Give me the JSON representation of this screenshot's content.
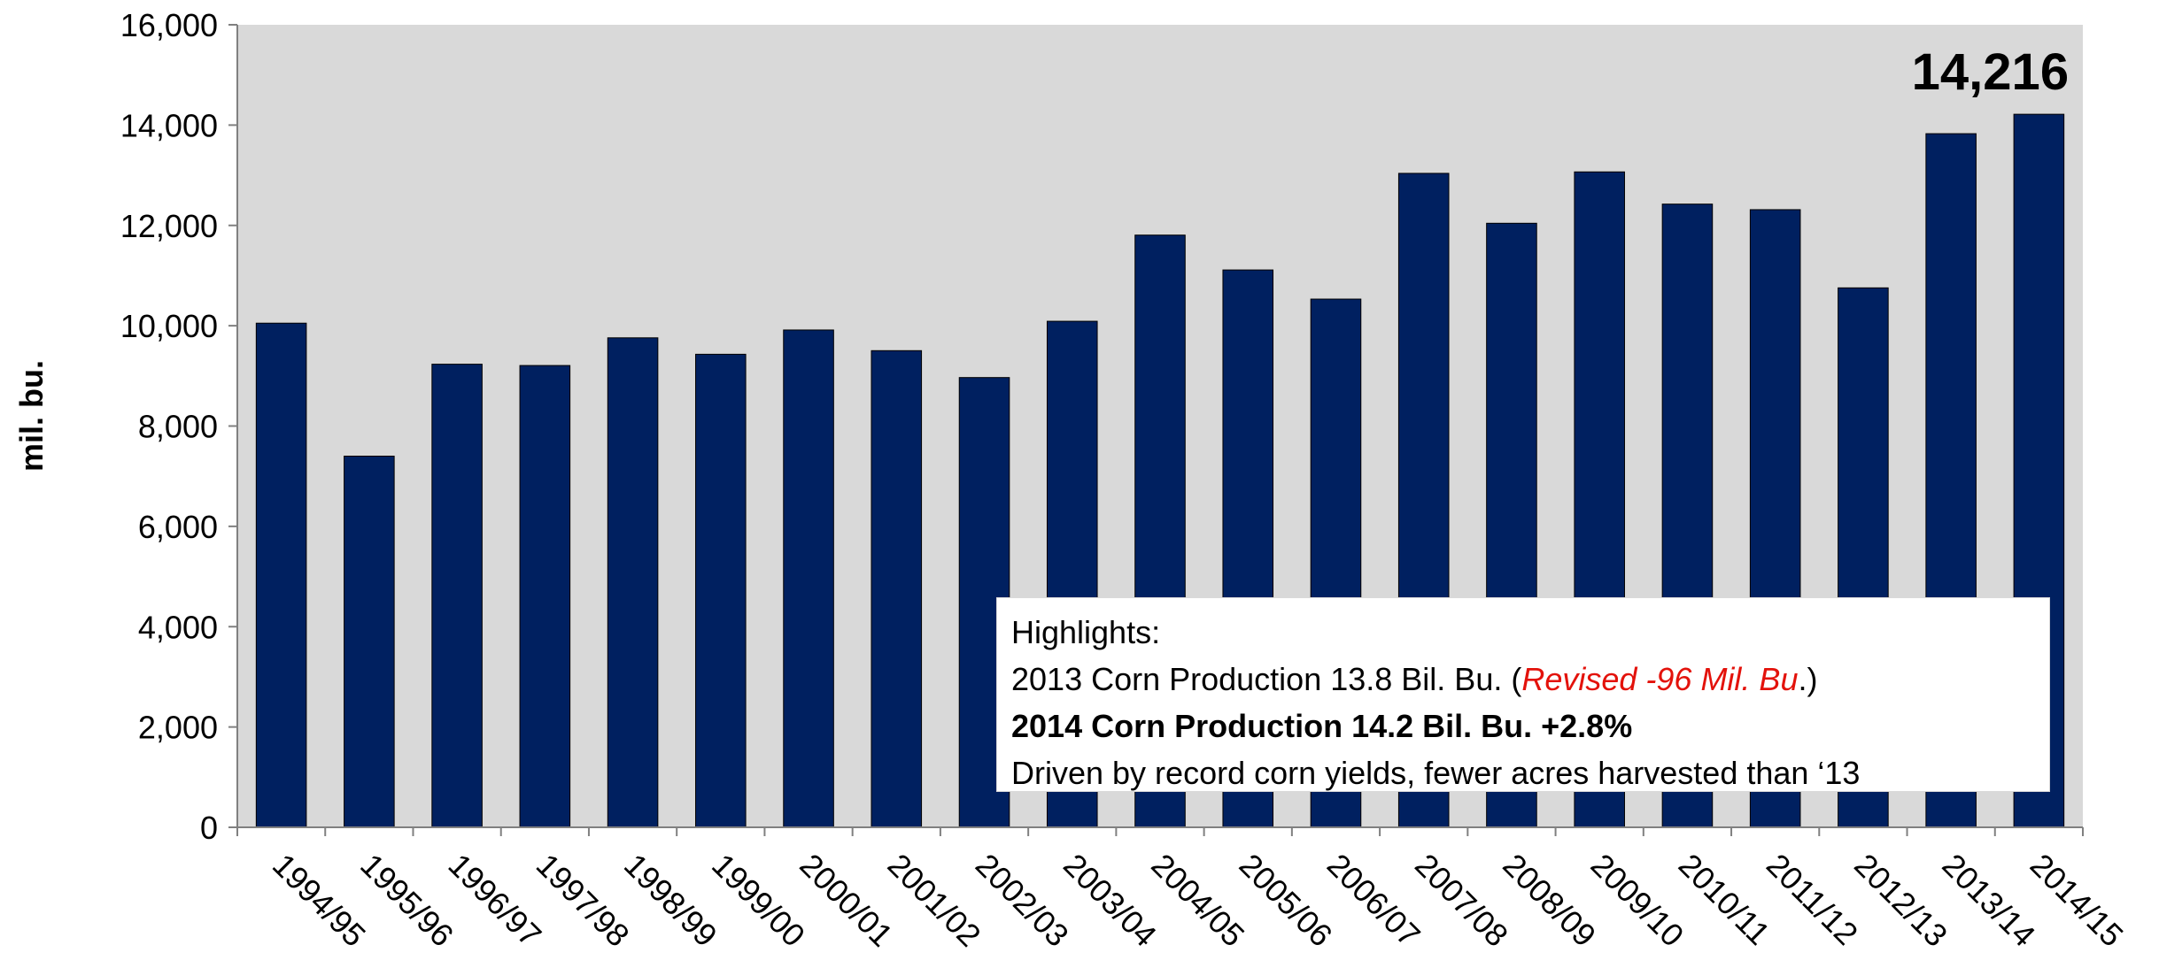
{
  "chart_data": {
    "type": "bar",
    "ylabel": "mil. bu.",
    "ylim": [
      0,
      16000
    ],
    "yticks": [
      "0",
      "2,000",
      "4,000",
      "6,000",
      "8,000",
      "10,000",
      "12,000",
      "14,000",
      "16,000"
    ],
    "categories": [
      "1994/95",
      "1995/96",
      "1996/97",
      "1997/98",
      "1998/99",
      "1999/00",
      "2000/01",
      "2001/02",
      "2002/03",
      "2003/04",
      "2004/05",
      "2005/06",
      "2006/07",
      "2007/08",
      "2008/09",
      "2009/10",
      "2010/11",
      "2011/12",
      "2012/13",
      "2013/14",
      "2014/15"
    ],
    "values": [
      10051,
      7400,
      9233,
      9207,
      9759,
      9431,
      9915,
      9503,
      8967,
      10089,
      11807,
      11112,
      10531,
      13038,
      12043,
      13067,
      12425,
      12314,
      10755,
      13829,
      14216
    ],
    "peak_label": "14,216",
    "bar_color": "#002060",
    "plot_background": "#d9d9d9",
    "grid": false
  },
  "highlights": {
    "heading": "Highlights:",
    "line1_prefix": "2013 Corn Production 13.8 Bil. Bu. (",
    "line1_revised": "Revised -96 Mil. Bu",
    "line1_suffix": ".)",
    "line2": "2014 Corn Production 14.2 Bil. Bu. +2.8%",
    "line3": "Driven by record corn yields, fewer acres harvested than ‘13"
  }
}
